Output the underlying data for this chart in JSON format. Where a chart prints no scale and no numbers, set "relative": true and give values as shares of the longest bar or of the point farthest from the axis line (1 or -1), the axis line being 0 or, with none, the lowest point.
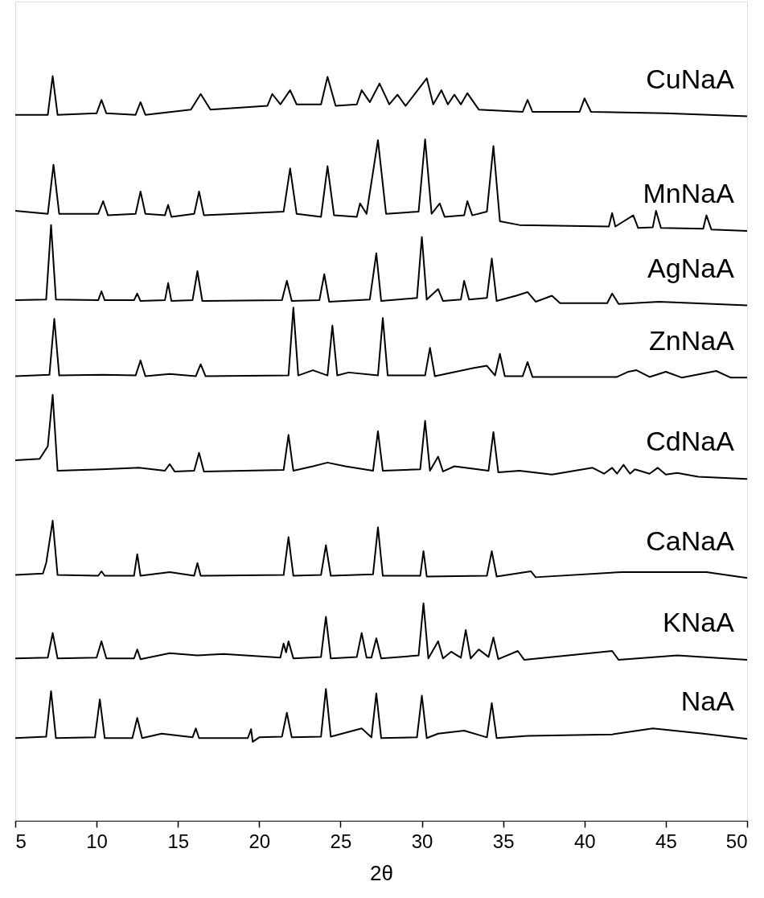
{
  "chart_data": {
    "type": "line",
    "xlabel": "2θ",
    "relative": true,
    "tick_labels": "x",
    "xlim": [
      5,
      50
    ],
    "xticks": [
      5,
      10,
      15,
      20,
      25,
      30,
      35,
      40,
      45,
      50
    ],
    "line_style": "solid",
    "series": [
      {
        "name": "CuNaA",
        "color": "#000000",
        "x": [
          5,
          7.0,
          7.3,
          7.6,
          10.0,
          10.3,
          10.6,
          12.4,
          12.7,
          13.0,
          15.8,
          16.4,
          17.0,
          20.5,
          20.8,
          21.3,
          21.9,
          22.3,
          23.8,
          24.2,
          24.7,
          26.0,
          26.3,
          26.8,
          27.4,
          28.0,
          28.5,
          29.0,
          30.3,
          30.7,
          31.2,
          31.6,
          32.0,
          32.4,
          32.8,
          33.5,
          36.2,
          36.5,
          36.8,
          39.7,
          40.0,
          40.4,
          45,
          50
        ],
        "values": [
          0.948,
          0.948,
          1.0,
          0.948,
          0.95,
          0.968,
          0.95,
          0.948,
          0.965,
          0.948,
          0.955,
          0.976,
          0.955,
          0.96,
          0.976,
          0.962,
          0.981,
          0.962,
          0.962,
          0.999,
          0.96,
          0.962,
          0.981,
          0.965,
          0.99,
          0.962,
          0.975,
          0.96,
          0.997,
          0.962,
          0.981,
          0.962,
          0.975,
          0.962,
          0.977,
          0.955,
          0.952,
          0.968,
          0.952,
          0.952,
          0.97,
          0.952,
          0.95,
          0.946
        ]
      },
      {
        "name": "MnNaA",
        "color": "#000000",
        "x": [
          5,
          7.0,
          7.35,
          7.7,
          10.1,
          10.4,
          10.7,
          12.4,
          12.7,
          13.0,
          14.2,
          14.4,
          14.6,
          16.0,
          16.3,
          16.6,
          21.5,
          21.9,
          22.3,
          23.8,
          24.2,
          24.6,
          26.0,
          26.2,
          26.6,
          27.3,
          27.8,
          29.8,
          30.2,
          30.6,
          31.1,
          31.4,
          32.6,
          32.8,
          33.1,
          34.0,
          34.4,
          34.8,
          36,
          41.5,
          41.7,
          41.9,
          43.0,
          43.3,
          44.2,
          44.4,
          44.7,
          47.3,
          47.5,
          47.8,
          50
        ],
        "values": [
          0.819,
          0.815,
          0.881,
          0.815,
          0.815,
          0.832,
          0.813,
          0.815,
          0.845,
          0.815,
          0.813,
          0.827,
          0.811,
          0.815,
          0.845,
          0.813,
          0.818,
          0.876,
          0.815,
          0.811,
          0.879,
          0.813,
          0.811,
          0.829,
          0.815,
          0.914,
          0.815,
          0.818,
          0.915,
          0.815,
          0.829,
          0.811,
          0.813,
          0.832,
          0.813,
          0.818,
          0.906,
          0.805,
          0.8,
          0.798,
          0.816,
          0.798,
          0.813,
          0.796,
          0.797,
          0.819,
          0.796,
          0.795,
          0.813,
          0.794,
          0.792
        ]
      },
      {
        "name": "AgNaA",
        "color": "#000000",
        "x": [
          5,
          6.9,
          7.2,
          7.5,
          10.1,
          10.3,
          10.5,
          12.3,
          12.5,
          12.7,
          14.2,
          14.4,
          14.6,
          15.9,
          16.2,
          16.5,
          21.4,
          21.7,
          22.0,
          23.7,
          24.0,
          24.3,
          26.8,
          27.2,
          27.5,
          29.7,
          30.0,
          30.3,
          31.0,
          31.3,
          32.4,
          32.6,
          32.9,
          34.0,
          34.3,
          34.6,
          35.8,
          36.5,
          37.0,
          38.0,
          38.5,
          41.4,
          41.7,
          42.1,
          44.6,
          50
        ],
        "values": [
          0.699,
          0.7,
          0.8,
          0.7,
          0.699,
          0.711,
          0.699,
          0.699,
          0.708,
          0.698,
          0.699,
          0.722,
          0.698,
          0.699,
          0.738,
          0.698,
          0.699,
          0.725,
          0.698,
          0.699,
          0.734,
          0.697,
          0.7,
          0.762,
          0.698,
          0.702,
          0.784,
          0.7,
          0.714,
          0.698,
          0.7,
          0.725,
          0.7,
          0.702,
          0.755,
          0.698,
          0.705,
          0.71,
          0.697,
          0.705,
          0.695,
          0.695,
          0.708,
          0.694,
          0.697,
          0.692
        ]
      },
      {
        "name": "ZnNaA",
        "color": "#000000",
        "x": [
          5,
          7.1,
          7.4,
          7.7,
          10.4,
          12.4,
          12.7,
          13.0,
          14.5,
          16.1,
          16.4,
          16.7,
          21.8,
          22.1,
          22.4,
          23.3,
          24.2,
          24.5,
          24.8,
          25.5,
          27.3,
          27.6,
          27.9,
          30.2,
          30.5,
          30.8,
          33.2,
          34.0,
          34.5,
          34.8,
          35.1,
          36.2,
          36.5,
          36.8,
          40,
          42.0,
          42.7,
          43.2,
          44,
          45.0,
          46,
          48.1,
          49,
          50
        ],
        "values": [
          0.597,
          0.599,
          0.674,
          0.598,
          0.599,
          0.598,
          0.618,
          0.597,
          0.6,
          0.597,
          0.613,
          0.597,
          0.598,
          0.689,
          0.598,
          0.605,
          0.598,
          0.665,
          0.598,
          0.602,
          0.598,
          0.675,
          0.598,
          0.598,
          0.635,
          0.597,
          0.608,
          0.611,
          0.598,
          0.627,
          0.597,
          0.597,
          0.616,
          0.596,
          0.596,
          0.596,
          0.603,
          0.605,
          0.596,
          0.603,
          0.595,
          0.604,
          0.595,
          0.595
        ]
      },
      {
        "name": "CdNaA",
        "color": "#000000",
        "x": [
          5,
          6.5,
          7.0,
          7.3,
          7.6,
          10.3,
          12.6,
          14.2,
          14.5,
          14.8,
          16.0,
          16.3,
          16.6,
          21.5,
          21.8,
          22.1,
          23.3,
          24.2,
          25.3,
          27.0,
          27.3,
          27.6,
          29.9,
          30.2,
          30.5,
          31.0,
          31.3,
          32.0,
          34.1,
          34.4,
          34.7,
          36.0,
          38,
          40.5,
          41.2,
          41.7,
          42.0,
          42.4,
          42.8,
          43.1,
          44.0,
          44.5,
          45.0,
          45.7,
          47,
          50
        ],
        "values": [
          0.484,
          0.486,
          0.503,
          0.572,
          0.47,
          0.472,
          0.474,
          0.47,
          0.479,
          0.469,
          0.47,
          0.494,
          0.469,
          0.471,
          0.518,
          0.47,
          0.476,
          0.481,
          0.476,
          0.47,
          0.523,
          0.47,
          0.472,
          0.537,
          0.47,
          0.489,
          0.469,
          0.476,
          0.47,
          0.522,
          0.468,
          0.47,
          0.465,
          0.474,
          0.466,
          0.474,
          0.466,
          0.478,
          0.466,
          0.472,
          0.466,
          0.474,
          0.465,
          0.467,
          0.462,
          0.459
        ]
      },
      {
        "name": "CaNaA",
        "color": "#000000",
        "x": [
          5,
          6.7,
          6.9,
          7.3,
          7.6,
          10.1,
          10.3,
          10.5,
          12.3,
          12.5,
          12.7,
          14.5,
          16.0,
          16.2,
          16.4,
          21.5,
          21.8,
          22.1,
          23.8,
          24.1,
          24.4,
          27.0,
          27.3,
          27.6,
          29.9,
          30.1,
          30.3,
          34.0,
          34.3,
          34.6,
          36.7,
          37,
          42.3,
          47.5,
          50
        ],
        "values": [
          0.33,
          0.332,
          0.346,
          0.403,
          0.33,
          0.329,
          0.335,
          0.329,
          0.329,
          0.358,
          0.329,
          0.334,
          0.329,
          0.346,
          0.329,
          0.33,
          0.381,
          0.329,
          0.33,
          0.37,
          0.329,
          0.331,
          0.394,
          0.329,
          0.329,
          0.362,
          0.328,
          0.329,
          0.362,
          0.328,
          0.335,
          0.327,
          0.334,
          0.334,
          0.326
        ]
      },
      {
        "name": "KNaA",
        "color": "#000000",
        "x": [
          5,
          7.0,
          7.3,
          7.6,
          10.0,
          10.3,
          10.6,
          12.3,
          12.5,
          12.7,
          14.5,
          16.2,
          17.8,
          21.3,
          21.5,
          21.65,
          21.8,
          22.1,
          23.8,
          24.1,
          24.4,
          26.0,
          26.3,
          26.6,
          26.9,
          27.2,
          27.5,
          29.8,
          30.1,
          30.4,
          31.0,
          31.3,
          31.8,
          32.4,
          32.7,
          33.0,
          33.5,
          34.1,
          34.4,
          34.7,
          35.9,
          36.3,
          41.7,
          42.1,
          45.7,
          50
        ],
        "values": [
          0.218,
          0.219,
          0.252,
          0.218,
          0.219,
          0.241,
          0.218,
          0.218,
          0.23,
          0.217,
          0.225,
          0.222,
          0.224,
          0.219,
          0.238,
          0.226,
          0.241,
          0.218,
          0.22,
          0.274,
          0.218,
          0.22,
          0.252,
          0.219,
          0.219,
          0.245,
          0.218,
          0.222,
          0.292,
          0.218,
          0.241,
          0.218,
          0.227,
          0.219,
          0.256,
          0.218,
          0.23,
          0.22,
          0.246,
          0.217,
          0.228,
          0.216,
          0.228,
          0.216,
          0.222,
          0.216
        ]
      },
      {
        "name": "NaA",
        "color": "#000000",
        "x": [
          5,
          6.9,
          7.2,
          7.5,
          9.9,
          10.2,
          10.5,
          12.2,
          12.5,
          12.8,
          14.0,
          15.9,
          16.1,
          16.3,
          19.3,
          19.5,
          19.6,
          20.0,
          21.4,
          21.7,
          22.0,
          23.8,
          24.1,
          24.4,
          26.3,
          26.9,
          27.2,
          27.5,
          29.7,
          30.0,
          30.3,
          31.0,
          32.6,
          34.0,
          34.3,
          34.6,
          36.5,
          41.7,
          43.6,
          44.2,
          47.3,
          50
        ],
        "values": [
          0.111,
          0.113,
          0.174,
          0.111,
          0.112,
          0.163,
          0.111,
          0.111,
          0.138,
          0.111,
          0.117,
          0.112,
          0.124,
          0.111,
          0.111,
          0.123,
          0.106,
          0.112,
          0.113,
          0.145,
          0.112,
          0.113,
          0.177,
          0.113,
          0.124,
          0.112,
          0.171,
          0.111,
          0.112,
          0.168,
          0.111,
          0.117,
          0.121,
          0.112,
          0.158,
          0.111,
          0.114,
          0.116,
          0.122,
          0.124,
          0.117,
          0.11
        ]
      }
    ]
  }
}
